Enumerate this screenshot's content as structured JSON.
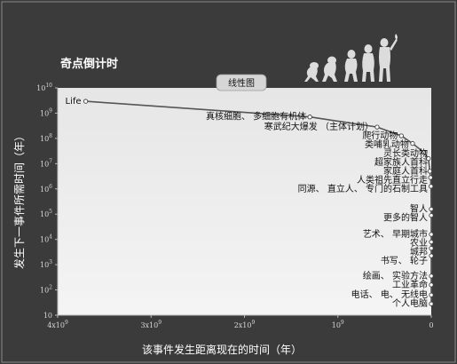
{
  "chart_data": {
    "type": "scatter",
    "title": "奇点倒计时",
    "tab_label": "线性图",
    "xlabel": "该事件发生距离现在的时间（年）",
    "ylabel": "发生下一事件所需时间（年）",
    "xlim": [
      4000000000,
      0
    ],
    "ylim_log10": [
      1,
      10
    ],
    "x_ticks": [
      {
        "value": 4000000000,
        "base": "4x10",
        "exp": "9"
      },
      {
        "value": 3000000000,
        "base": "3x10",
        "exp": "9"
      },
      {
        "value": 2000000000,
        "base": "2x10",
        "exp": "9"
      },
      {
        "value": 1000000000,
        "base": "10",
        "exp": "9"
      },
      {
        "value": 0,
        "base": "0",
        "exp": ""
      }
    ],
    "y_ticks": [
      {
        "value": 10,
        "base": "10",
        "exp": "10"
      },
      {
        "value": 9,
        "base": "10",
        "exp": "9"
      },
      {
        "value": 8,
        "base": "10",
        "exp": "8"
      },
      {
        "value": 7,
        "base": "10",
        "exp": "7"
      },
      {
        "value": 6,
        "base": "10",
        "exp": "6"
      },
      {
        "value": 5,
        "base": "10",
        "exp": "5"
      },
      {
        "value": 4,
        "base": "10",
        "exp": "4"
      },
      {
        "value": 3,
        "base": "10",
        "exp": "3"
      },
      {
        "value": 2,
        "base": "10",
        "exp": "2"
      },
      {
        "value": 1,
        "base": "10",
        "exp": ""
      }
    ],
    "points": [
      {
        "label": "Life",
        "x": 3700000000,
        "y": 9.47
      },
      {
        "label": "真核细胞、 多细胞有机体",
        "x": 1300000000,
        "y": 8.85
      },
      {
        "label": "寒武纪大爆发 （主体计划）",
        "x": 580000000,
        "y": 8.45
      },
      {
        "label": "爬行动物",
        "x": 320000000,
        "y": 8.1
      },
      {
        "label": "类哺乳动物",
        "x": 200000000,
        "y": 7.8
      },
      {
        "label": "灵长类动物",
        "x": 80000000,
        "y": 7.45
      },
      {
        "label": "超家族人首科",
        "x": 30000000,
        "y": 7.2
      },
      {
        "label": "家庭人首科",
        "x": 15000000,
        "y": 6.7
      },
      {
        "label": "人类祖先直立行走",
        "x": 8000000,
        "y": 6.45
      },
      {
        "label": "同源、 直立人、 专门的石制工具",
        "x": 3000000,
        "y": 6.1
      },
      {
        "label": "智人",
        "x": 500000,
        "y": 5.2
      },
      {
        "label": "更多的智人",
        "x": 100000,
        "y": 4.95
      },
      {
        "label": "艺术、 早期城市",
        "x": 40000,
        "y": 4.2
      },
      {
        "label": "农业",
        "x": 15000,
        "y": 3.9
      },
      {
        "label": "城邦",
        "x": 8000,
        "y": 3.65
      },
      {
        "label": "书写、 轮子",
        "x": 6000,
        "y": 3.35
      },
      {
        "label": "绘画、 实验方法",
        "x": 500,
        "y": 2.55
      },
      {
        "label": "工业革命",
        "x": 250,
        "y": 2.2
      },
      {
        "label": "电话、 电、 无线电",
        "x": 120,
        "y": 1.8
      },
      {
        "label": "个人电脑",
        "x": 30,
        "y": 1.45
      }
    ]
  }
}
